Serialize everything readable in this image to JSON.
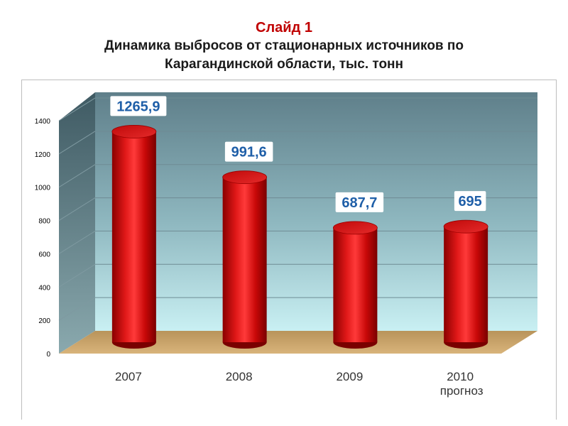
{
  "header": {
    "slide_label": "Слайд 1",
    "title_line1": "Динамика выбросов от стационарных источников по",
    "title_line2": "Карагандинской области, тыс. тонн"
  },
  "colors": {
    "slide_label": "#c00000",
    "bar": "#d41010",
    "value_label": "#1f5fa8",
    "back_wall_top": "#5f7f8a",
    "back_wall_bottom": "#c6eef2",
    "floor": "#c8a46a"
  },
  "chart_data": {
    "type": "bar",
    "style": "3d-cylinder",
    "title": "Динамика выбросов от стационарных источников по Карагандинской области, тыс. тонн",
    "categories": [
      "2007",
      "2008",
      "2009",
      "2010"
    ],
    "category_sublabels": [
      "",
      "",
      "",
      "прогноз"
    ],
    "series": [
      {
        "values": [
          1265.9,
          991.6,
          687.7,
          695
        ]
      }
    ],
    "data_labels": [
      "1265,9",
      "991,6",
      "687,7",
      "695"
    ],
    "yticks": [
      "0",
      "200",
      "400",
      "600",
      "800",
      "1000",
      "1200",
      "1400"
    ],
    "ylim": [
      0,
      1400
    ],
    "grid": true,
    "legend": "none"
  }
}
